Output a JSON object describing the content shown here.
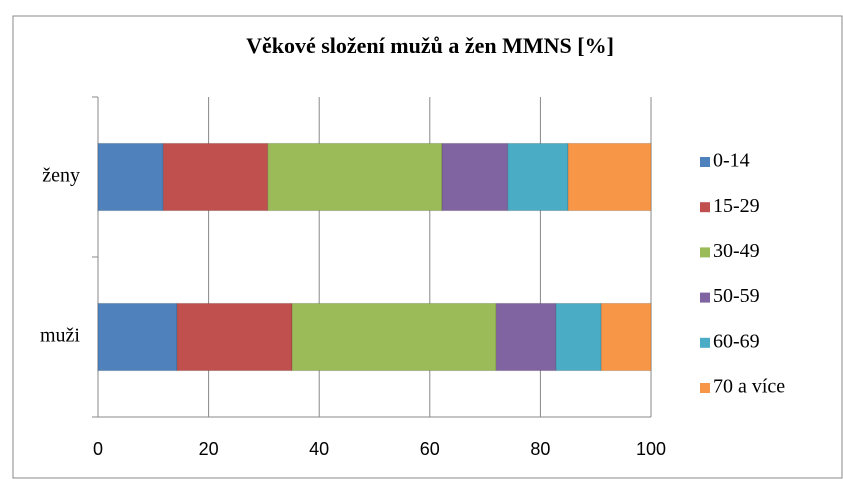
{
  "chart_data": {
    "type": "stacked-bar-horizontal",
    "title": "Věkové složení mužů a žen MMNS [%]",
    "categories": [
      "muži",
      "ženy"
    ],
    "series": [
      {
        "name": "0-14",
        "color": "#4f81bd",
        "values": [
          14.3,
          11.8
        ]
      },
      {
        "name": "15-29",
        "color": "#c0504d",
        "values": [
          20.8,
          18.9
        ]
      },
      {
        "name": "30-49",
        "color": "#9bbb59",
        "values": [
          36.9,
          31.5
        ]
      },
      {
        "name": "50-59",
        "color": "#8064a2",
        "values": [
          10.8,
          11.9
        ]
      },
      {
        "name": "60-69",
        "color": "#4bacc6",
        "values": [
          8.2,
          10.9
        ]
      },
      {
        "name": "70 a více",
        "color": "#f79646",
        "values": [
          9.0,
          15.0
        ]
      }
    ],
    "xlim": [
      0,
      100
    ],
    "xticks": [
      0,
      20,
      40,
      60,
      80,
      100
    ],
    "grid": true,
    "legend": "right"
  }
}
